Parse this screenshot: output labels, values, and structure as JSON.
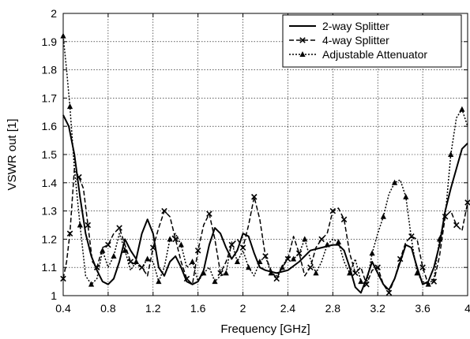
{
  "chart_data": {
    "type": "line",
    "xlabel": "Frequency [GHz]",
    "ylabel": "VSWR out [1]",
    "xlim": [
      0.4,
      4
    ],
    "ylim": [
      1,
      2
    ],
    "xticks": [
      0.4,
      0.8,
      1.2,
      1.6,
      2,
      2.4,
      2.8,
      3.2,
      3.6,
      4
    ],
    "xtick_labels": [
      "0.4",
      "0.8",
      "1.2",
      "1.6",
      "2",
      "2.4",
      "2.8",
      "3.2",
      "3.6",
      "4"
    ],
    "yticks": [
      1,
      1.1,
      1.2,
      1.3,
      1.4,
      1.5,
      1.6,
      1.7,
      1.8,
      1.9,
      2
    ],
    "ytick_labels": [
      "1",
      "1.1",
      "1.2",
      "1.3",
      "1.4",
      "1.5",
      "1.6",
      "1.7",
      "1.8",
      "1.9",
      "2"
    ],
    "grid": true,
    "legend_position": "top-right",
    "series": [
      {
        "name": "2-way Splitter",
        "style": "solid",
        "marker": "none",
        "color": "#000000",
        "x": [
          0.4,
          0.45,
          0.5,
          0.55,
          0.6,
          0.65,
          0.7,
          0.75,
          0.8,
          0.85,
          0.9,
          0.95,
          1.0,
          1.05,
          1.1,
          1.15,
          1.2,
          1.25,
          1.3,
          1.35,
          1.4,
          1.45,
          1.5,
          1.55,
          1.6,
          1.65,
          1.7,
          1.75,
          1.8,
          1.85,
          1.9,
          1.95,
          2.0,
          2.05,
          2.1,
          2.15,
          2.2,
          2.3,
          2.4,
          2.5,
          2.6,
          2.7,
          2.8,
          2.85,
          2.9,
          2.95,
          3.0,
          3.05,
          3.1,
          3.15,
          3.2,
          3.25,
          3.3,
          3.35,
          3.4,
          3.45,
          3.5,
          3.55,
          3.6,
          3.65,
          3.7,
          3.75,
          3.8,
          3.85,
          3.9,
          3.95,
          4.0
        ],
        "y": [
          1.64,
          1.6,
          1.5,
          1.35,
          1.22,
          1.14,
          1.09,
          1.05,
          1.04,
          1.06,
          1.12,
          1.2,
          1.16,
          1.13,
          1.22,
          1.27,
          1.22,
          1.1,
          1.07,
          1.12,
          1.14,
          1.1,
          1.05,
          1.04,
          1.05,
          1.09,
          1.18,
          1.24,
          1.22,
          1.17,
          1.13,
          1.16,
          1.22,
          1.21,
          1.15,
          1.1,
          1.09,
          1.08,
          1.09,
          1.12,
          1.16,
          1.17,
          1.18,
          1.18,
          1.16,
          1.1,
          1.03,
          1.01,
          1.06,
          1.12,
          1.08,
          1.04,
          1.02,
          1.06,
          1.12,
          1.18,
          1.17,
          1.1,
          1.04,
          1.05,
          1.1,
          1.18,
          1.3,
          1.38,
          1.45,
          1.52,
          1.54
        ]
      },
      {
        "name": "4-way Splitter",
        "style": "dashed",
        "marker": "x",
        "color": "#000000",
        "x": [
          0.4,
          0.43,
          0.46,
          0.5,
          0.54,
          0.58,
          0.62,
          0.66,
          0.7,
          0.75,
          0.8,
          0.85,
          0.9,
          0.95,
          1.0,
          1.05,
          1.1,
          1.15,
          1.2,
          1.25,
          1.3,
          1.35,
          1.4,
          1.45,
          1.5,
          1.55,
          1.6,
          1.65,
          1.7,
          1.75,
          1.8,
          1.85,
          1.9,
          1.95,
          2.0,
          2.05,
          2.1,
          2.15,
          2.2,
          2.25,
          2.3,
          2.35,
          2.4,
          2.45,
          2.5,
          2.55,
          2.6,
          2.65,
          2.7,
          2.75,
          2.8,
          2.85,
          2.9,
          2.95,
          3.0,
          3.05,
          3.1,
          3.15,
          3.2,
          3.25,
          3.3,
          3.35,
          3.4,
          3.45,
          3.5,
          3.55,
          3.6,
          3.65,
          3.7,
          3.75,
          3.8,
          3.85,
          3.9,
          3.95,
          4.0
        ],
        "y": [
          1.06,
          1.12,
          1.22,
          1.45,
          1.42,
          1.38,
          1.25,
          1.12,
          1.1,
          1.17,
          1.18,
          1.22,
          1.24,
          1.18,
          1.12,
          1.11,
          1.1,
          1.07,
          1.17,
          1.24,
          1.3,
          1.28,
          1.2,
          1.12,
          1.06,
          1.04,
          1.16,
          1.25,
          1.29,
          1.2,
          1.08,
          1.12,
          1.18,
          1.2,
          1.17,
          1.25,
          1.35,
          1.27,
          1.14,
          1.09,
          1.06,
          1.1,
          1.13,
          1.21,
          1.15,
          1.07,
          1.1,
          1.17,
          1.2,
          1.22,
          1.3,
          1.31,
          1.27,
          1.15,
          1.08,
          1.1,
          1.04,
          1.09,
          1.1,
          1.04,
          1.01,
          1.06,
          1.13,
          1.19,
          1.21,
          1.2,
          1.1,
          1.04,
          1.05,
          1.14,
          1.28,
          1.3,
          1.25,
          1.23,
          1.33
        ]
      },
      {
        "name": "Adjustable Attenuator",
        "style": "dotted",
        "marker": "triangle",
        "color": "#000000",
        "x": [
          0.4,
          0.43,
          0.46,
          0.5,
          0.55,
          0.6,
          0.65,
          0.7,
          0.75,
          0.8,
          0.85,
          0.9,
          0.95,
          1.0,
          1.05,
          1.1,
          1.15,
          1.2,
          1.25,
          1.3,
          1.35,
          1.4,
          1.45,
          1.5,
          1.55,
          1.6,
          1.65,
          1.7,
          1.75,
          1.8,
          1.85,
          1.9,
          1.95,
          2.0,
          2.05,
          2.1,
          2.15,
          2.2,
          2.25,
          2.3,
          2.35,
          2.4,
          2.45,
          2.5,
          2.55,
          2.6,
          2.65,
          2.7,
          2.75,
          2.8,
          2.85,
          2.9,
          2.95,
          3.0,
          3.05,
          3.1,
          3.15,
          3.2,
          3.25,
          3.3,
          3.35,
          3.4,
          3.45,
          3.5,
          3.55,
          3.6,
          3.65,
          3.7,
          3.75,
          3.8,
          3.85,
          3.9,
          3.95,
          4.0
        ],
        "y": [
          1.92,
          1.8,
          1.67,
          1.45,
          1.25,
          1.07,
          1.04,
          1.06,
          1.16,
          1.1,
          1.14,
          1.22,
          1.16,
          1.09,
          1.12,
          1.1,
          1.13,
          1.12,
          1.05,
          1.1,
          1.2,
          1.22,
          1.18,
          1.1,
          1.12,
          1.05,
          1.08,
          1.1,
          1.05,
          1.07,
          1.08,
          1.19,
          1.12,
          1.16,
          1.1,
          1.07,
          1.12,
          1.14,
          1.08,
          1.07,
          1.1,
          1.14,
          1.13,
          1.15,
          1.2,
          1.13,
          1.08,
          1.12,
          1.18,
          1.2,
          1.19,
          1.12,
          1.08,
          1.13,
          1.05,
          1.04,
          1.15,
          1.22,
          1.28,
          1.36,
          1.4,
          1.41,
          1.35,
          1.2,
          1.08,
          1.05,
          1.04,
          1.06,
          1.2,
          1.28,
          1.5,
          1.63,
          1.66,
          1.6
        ]
      }
    ]
  }
}
